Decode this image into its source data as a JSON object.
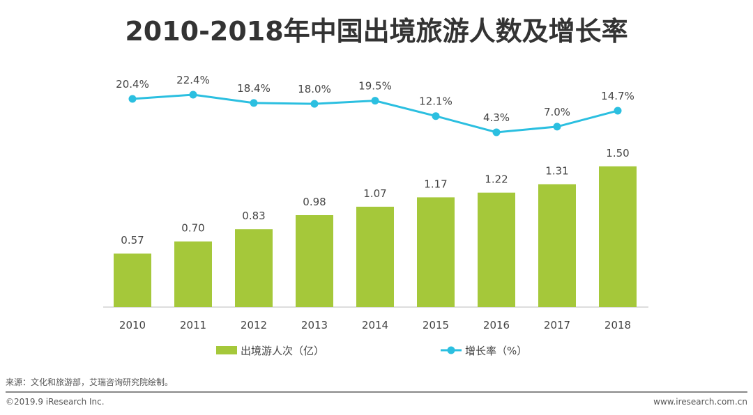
{
  "chart_data": {
    "type": "bar+line",
    "title": "2010-2018年中国出境旅游人数及增长率",
    "categories": [
      "2010",
      "2011",
      "2012",
      "2013",
      "2014",
      "2015",
      "2016",
      "2017",
      "2018"
    ],
    "series": [
      {
        "name": "出境游人次（亿）",
        "type": "bar",
        "color": "#a5c83a",
        "values": [
          0.57,
          0.7,
          0.83,
          0.98,
          1.07,
          1.17,
          1.22,
          1.31,
          1.5
        ],
        "labels": [
          "0.57",
          "0.70",
          "0.83",
          "0.98",
          "1.07",
          "1.17",
          "1.22",
          "1.31",
          "1.50"
        ]
      },
      {
        "name": "增长率（%）",
        "type": "line",
        "color": "#2bbfe0",
        "values": [
          20.4,
          22.4,
          18.4,
          18.0,
          19.5,
          12.1,
          4.3,
          7.0,
          14.7
        ],
        "labels": [
          "20.4%",
          "22.4%",
          "18.4%",
          "18.0%",
          "19.5%",
          "12.1%",
          "4.3%",
          "7.0%",
          "14.7%"
        ]
      }
    ],
    "legend_placement": "bottom",
    "grid": false
  },
  "footer": {
    "source": "来源：文化和旅游部，艾瑞咨询研究院绘制。",
    "copyright": "©2019.9 iResearch Inc.",
    "website": "www.iresearch.com.cn"
  }
}
